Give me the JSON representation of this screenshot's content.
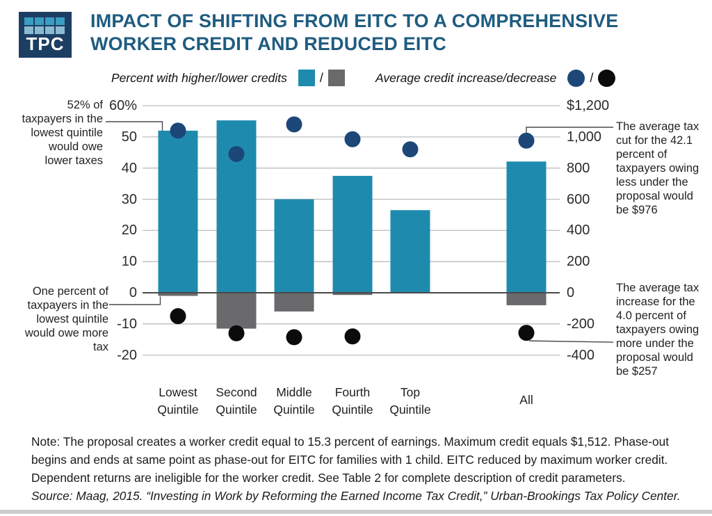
{
  "header": {
    "logo_text": "TPC",
    "title_line1": "IMPACT OF SHIFTING FROM EITC TO A COMPREHENSIVE",
    "title_line2": "WORKER CREDIT AND REDUCED EITC"
  },
  "legend": {
    "bars_label": "Percent with higher/lower credits",
    "dots_label": "Average credit increase/decrease",
    "slash": "/"
  },
  "colors": {
    "title_blue": "#1f5c80",
    "bar_higher_teal": "#1e8bae",
    "bar_lower_gray": "#6a6a6c",
    "dot_increase_navy": "#1c4778",
    "dot_decrease_black": "#0b0b0b",
    "logo_bg_navy": "#1c3e63",
    "logo_squares_top": "#3a9dc2",
    "logo_squares_bottom": "#8abbd3",
    "gridline_gray": "#bdbdbd",
    "zero_axis": "#4a4a4a"
  },
  "chart_data": {
    "type": "bar",
    "subtype": "combo bar + scatter, dual axis",
    "title": "Impact of shifting from EITC to a comprehensive worker credit and reduced EITC",
    "categories": [
      "Lowest Quintile",
      "Second Quintile",
      "Middle Quintile",
      "Fourth Quintile",
      "Top Quintile",
      "All"
    ],
    "series": [
      {
        "name": "Percent with higher credits",
        "type": "bar",
        "axis": "left_percent",
        "color": "#1e8bae",
        "values": [
          52,
          55.3,
          30,
          37.5,
          26.5,
          42.1
        ]
      },
      {
        "name": "Percent with lower credits",
        "type": "bar",
        "axis": "left_percent",
        "color": "#6a6a6c",
        "values": [
          -1,
          -11.5,
          -6,
          -0.7,
          0,
          -4
        ]
      },
      {
        "name": "Average credit increase",
        "type": "scatter",
        "axis": "right_dollars",
        "color": "#1c4778",
        "values": [
          1040,
          890,
          1080,
          985,
          920,
          976
        ]
      },
      {
        "name": "Average credit decrease",
        "type": "scatter",
        "axis": "right_dollars",
        "color": "#0b0b0b",
        "values": [
          -150,
          -260,
          -285,
          -280,
          null,
          -257
        ]
      }
    ],
    "left_axis": {
      "label": "percent",
      "ticks": [
        "60%",
        "50",
        "40",
        "30",
        "20",
        "10",
        "0",
        "-10",
        "-20"
      ],
      "values": [
        60,
        50,
        40,
        30,
        20,
        10,
        0,
        -10,
        -20
      ],
      "range": [
        -20,
        60
      ]
    },
    "right_axis": {
      "label": "dollars",
      "ticks": [
        "$1,200",
        "1,000",
        "800",
        "600",
        "400",
        "200",
        "0",
        "-200",
        "-400"
      ],
      "values": [
        1200,
        1000,
        800,
        600,
        400,
        200,
        0,
        -200,
        -400
      ],
      "range": [
        -400,
        1200
      ]
    },
    "grid": true,
    "legend_position": "top"
  },
  "annotations": {
    "top_left": "52% of taxpayers in the lowest quintile would owe lower taxes",
    "bottom_left": "One percent of taxpayers in the lowest quintile would owe more tax",
    "top_right": "The average tax cut for the 42.1 percent of taxpayers owing less under the proposal would be $976",
    "bottom_right": "The average tax increase for the 4.0 percent of taxpayers owing more under the proposal would be $257"
  },
  "footer": {
    "note": "Note: The proposal creates a worker credit equal to 15.3 percent of earnings. Maximum credit equals $1,512. Phase-out begins and ends at same point as phase-out for EITC for families with 1 child. EITC reduced by maximum worker credit. Dependent returns are ineligible for the worker credit. See Table 2 for complete description of credit parameters.",
    "source": "Source: Maag, 2015. “Investing in Work by Reforming the Earned Income Tax Credit,” Urban-Brookings Tax Policy Center."
  }
}
